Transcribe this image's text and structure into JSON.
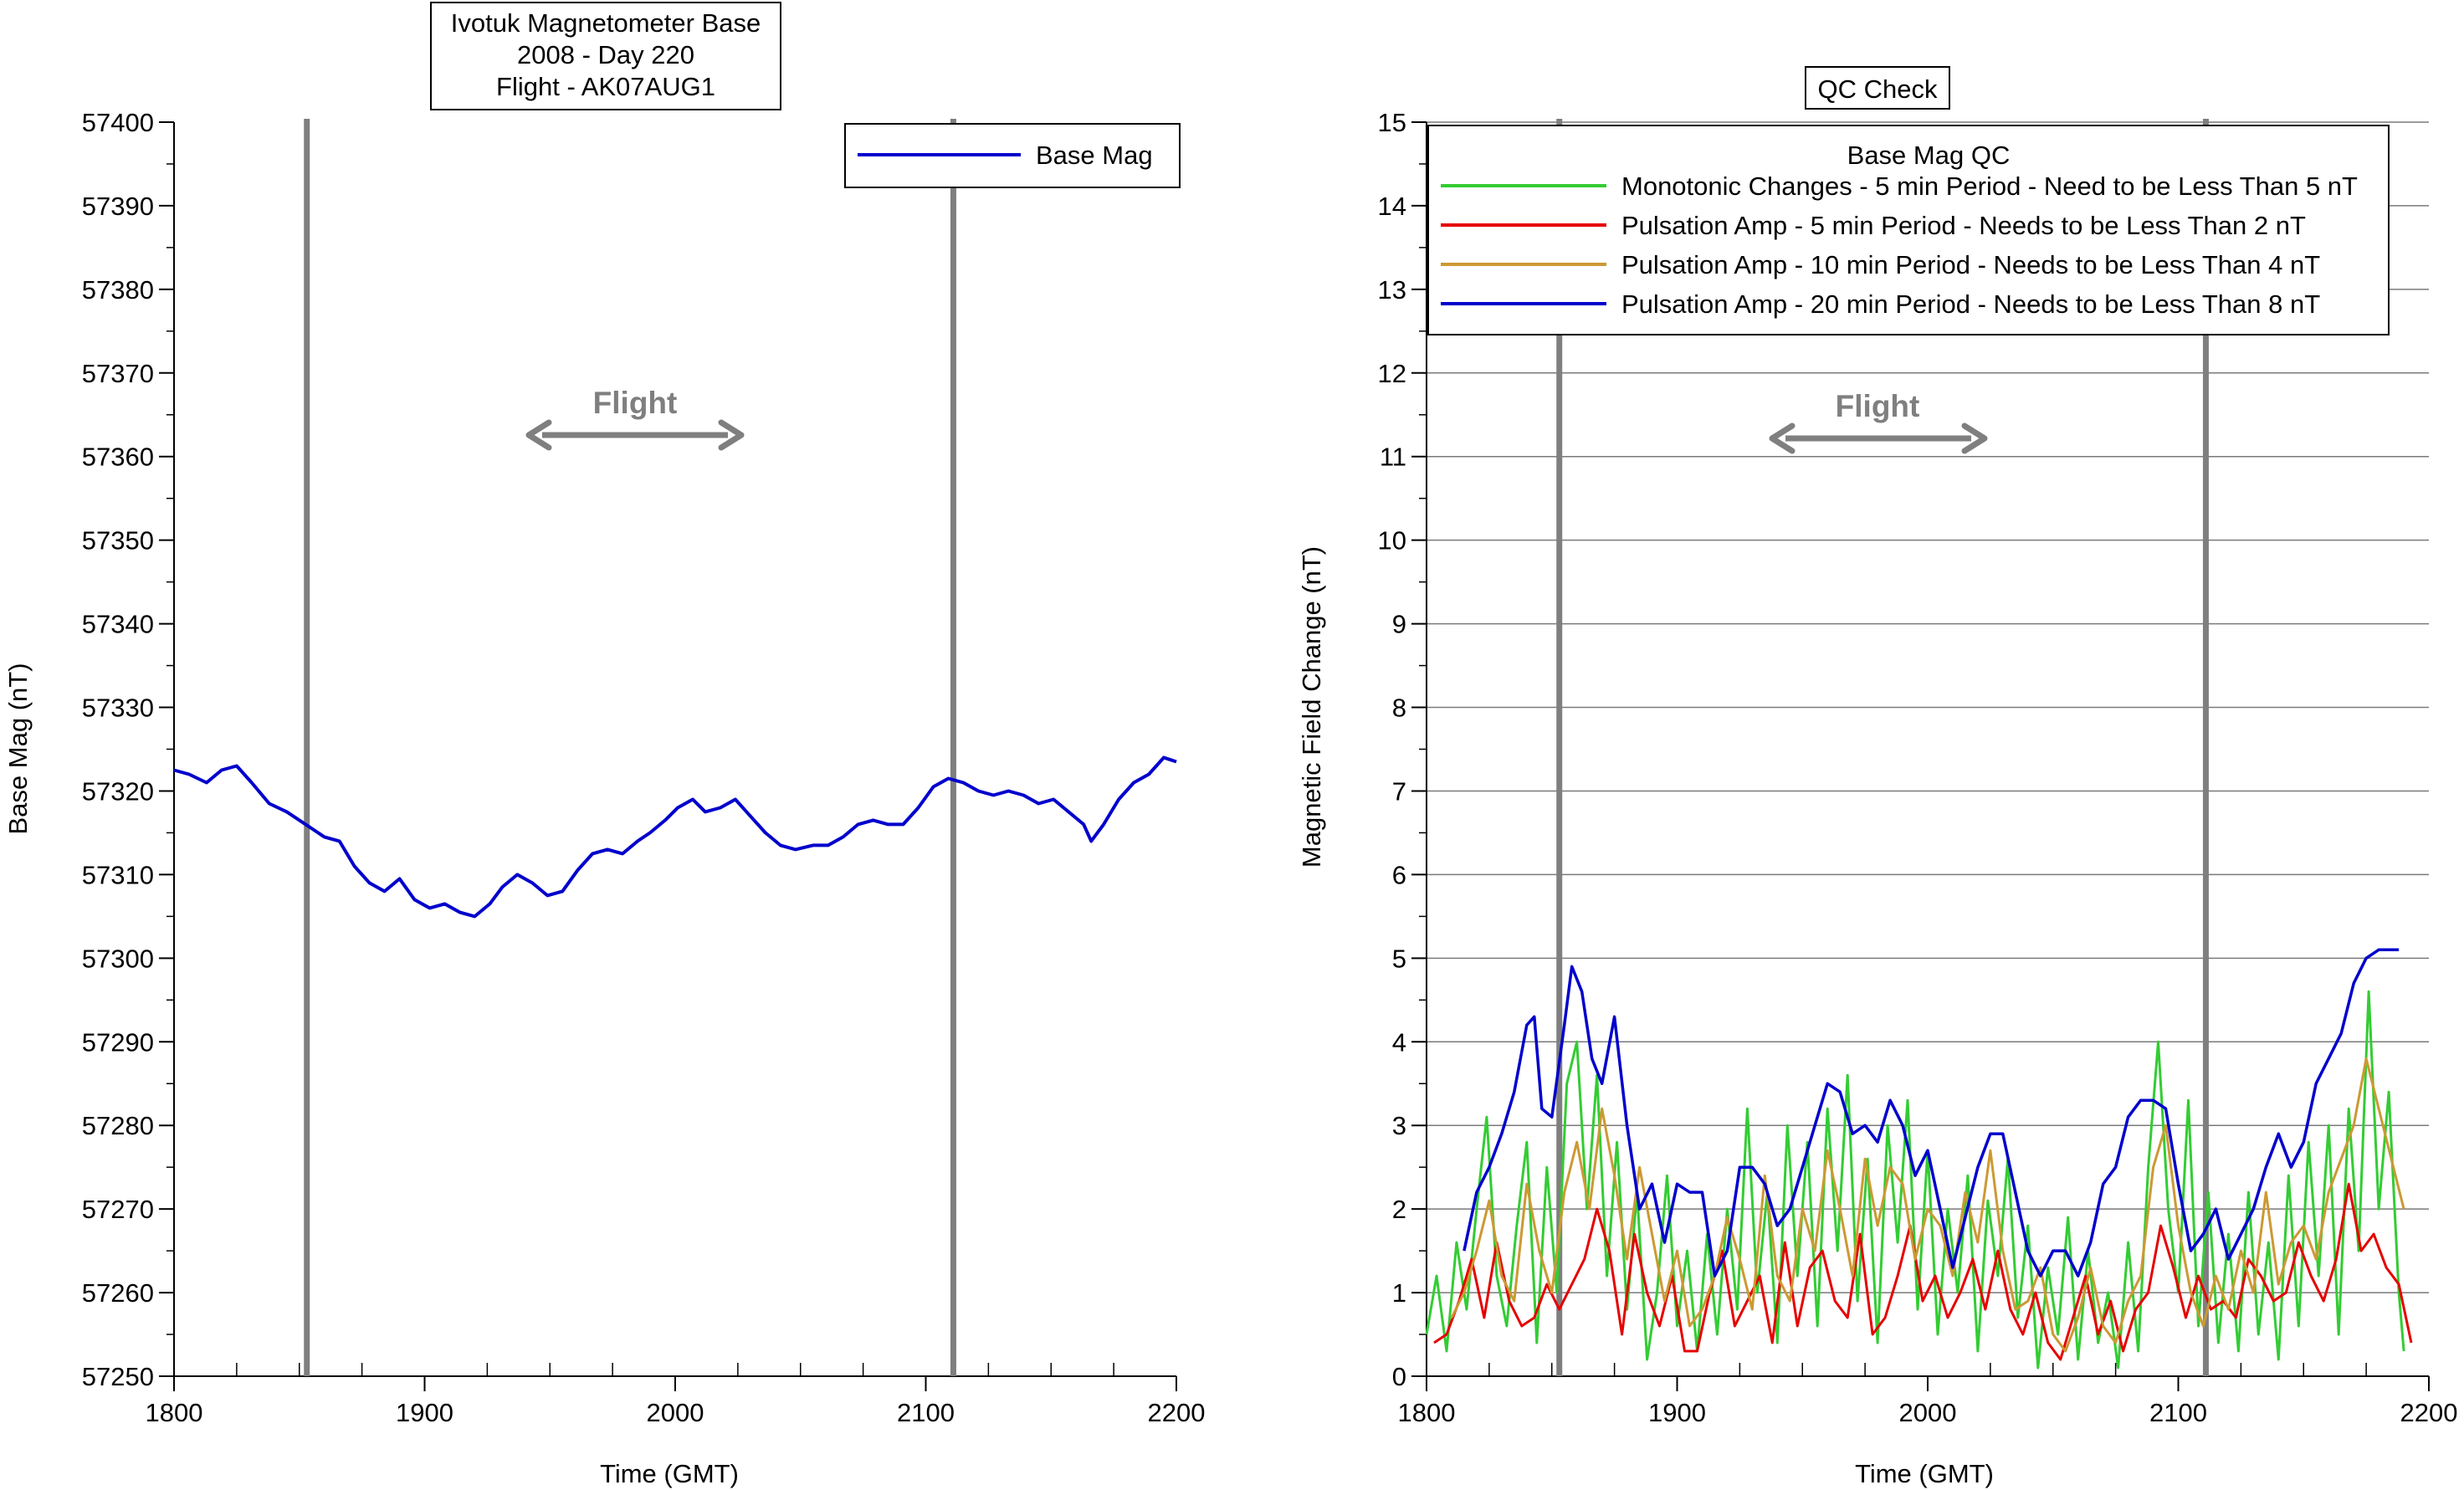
{
  "chart_data": [
    {
      "type": "line",
      "title_lines": [
        "Ivotuk Magnetometer Base",
        "2008 - Day 220",
        "Flight - AK07AUG1"
      ],
      "xlabel": "Time (GMT)",
      "ylabel": "Base Mag (nT)",
      "xlim": [
        1800,
        2200
      ],
      "ylim": [
        57250,
        57400
      ],
      "x_ticks": [
        "1800",
        "1900",
        "2000",
        "2100",
        "2200"
      ],
      "y_ticks": [
        "57250",
        "57260",
        "57270",
        "57280",
        "57290",
        "57300",
        "57310",
        "57320",
        "57330",
        "57340",
        "57350",
        "57360",
        "57370",
        "57380",
        "57390",
        "57400"
      ],
      "grid": false,
      "legend_position": "top-right",
      "flight_label": "Flight",
      "flight_markers": [
        1853,
        2111
      ],
      "series": [
        {
          "name": "Base Mag",
          "color": "#0000cc",
          "x": [
            1800,
            1806,
            1813,
            1819,
            1825,
            1831,
            1838,
            1845,
            1850,
            1855,
            1860,
            1866,
            1872,
            1878,
            1884,
            1890,
            1896,
            1902,
            1908,
            1914,
            1920,
            1926,
            1931,
            1937,
            1943,
            1949,
            1955,
            1961,
            1967,
            1973,
            1979,
            1985,
            1990,
            1996,
            2001,
            2007,
            2012,
            2018,
            2024,
            2030,
            2036,
            2042,
            2048,
            2055,
            2061,
            2067,
            2073,
            2079,
            2085,
            2091,
            2097,
            2103,
            2109,
            2115,
            2121,
            2127,
            2133,
            2139,
            2145,
            2151,
            2157,
            2163,
            2166,
            2171,
            2177,
            2183,
            2189,
            2195,
            2200
          ],
          "values": [
            57322.5,
            57322,
            57321,
            57322.5,
            57323,
            57321,
            57318.5,
            57317.5,
            57316.5,
            57315.5,
            57314.5,
            57314,
            57311,
            57309,
            57308,
            57309.5,
            57307,
            57306,
            57306.5,
            57305.5,
            57305,
            57306.5,
            57308.5,
            57310,
            57309,
            57307.5,
            57308,
            57310.5,
            57312.5,
            57313,
            57312.5,
            57314,
            57315,
            57316.5,
            57318,
            57319,
            57317.5,
            57318,
            57319,
            57317,
            57315,
            57313.5,
            57313,
            57313.5,
            57313.5,
            57314.5,
            57316,
            57316.5,
            57316,
            57316,
            57318,
            57320.5,
            57321.5,
            57321,
            57320,
            57319.5,
            57320,
            57319.5,
            57318.5,
            57319,
            57317.5,
            57316,
            57314,
            57316,
            57319,
            57321,
            57322,
            57324,
            57323.5
          ]
        }
      ]
    },
    {
      "type": "line",
      "title": "QC Check",
      "xlabel": "Time (GMT)",
      "ylabel": "Magnetic Field Change (nT)",
      "xlim": [
        1800,
        2200
      ],
      "ylim": [
        0,
        15
      ],
      "x_ticks": [
        "1800",
        "1900",
        "2000",
        "2100",
        "2200"
      ],
      "y_ticks": [
        "0",
        "1",
        "2",
        "3",
        "4",
        "5",
        "6",
        "7",
        "8",
        "9",
        "10",
        "11",
        "12",
        "13",
        "14",
        "15"
      ],
      "grid": true,
      "legend_title": "Base Mag QC",
      "legend_position": "top",
      "flight_label": "Flight",
      "flight_markers": [
        1853,
        2111
      ],
      "series": [
        {
          "name": "Monotonic Changes - 5 min Period - Need to be Less Than 5 nT",
          "color": "#33cc33",
          "x": [
            1800,
            1804,
            1808,
            1812,
            1816,
            1820,
            1824,
            1828,
            1832,
            1836,
            1840,
            1844,
            1848,
            1852,
            1856,
            1860,
            1864,
            1868,
            1872,
            1876,
            1880,
            1884,
            1888,
            1892,
            1896,
            1900,
            1904,
            1908,
            1912,
            1916,
            1920,
            1924,
            1928,
            1932,
            1936,
            1940,
            1944,
            1948,
            1952,
            1956,
            1960,
            1964,
            1968,
            1972,
            1976,
            1980,
            1984,
            1988,
            1992,
            1996,
            2000,
            2004,
            2008,
            2012,
            2016,
            2020,
            2024,
            2028,
            2032,
            2036,
            2040,
            2044,
            2048,
            2052,
            2056,
            2060,
            2064,
            2068,
            2072,
            2076,
            2080,
            2084,
            2088,
            2092,
            2096,
            2100,
            2104,
            2108,
            2112,
            2116,
            2120,
            2124,
            2128,
            2132,
            2136,
            2140,
            2144,
            2148,
            2152,
            2156,
            2160,
            2164,
            2168,
            2172,
            2176,
            2180,
            2184,
            2188,
            2190
          ],
          "values": [
            0.5,
            1.2,
            0.3,
            1.6,
            0.8,
            2.0,
            3.1,
            1.2,
            0.6,
            1.8,
            2.8,
            0.4,
            2.5,
            1.0,
            3.5,
            4.0,
            2.0,
            3.6,
            1.2,
            2.8,
            0.8,
            2.2,
            0.2,
            1.0,
            2.4,
            0.6,
            1.5,
            0.3,
            1.7,
            0.5,
            2.0,
            0.8,
            3.2,
            1.0,
            2.2,
            0.4,
            3.0,
            1.2,
            2.8,
            0.6,
            3.2,
            1.5,
            3.6,
            0.9,
            2.6,
            0.4,
            3.0,
            1.6,
            3.3,
            0.8,
            2.7,
            0.5,
            2.0,
            1.0,
            2.4,
            0.3,
            2.1,
            1.2,
            2.6,
            0.7,
            1.8,
            0.1,
            1.3,
            0.5,
            1.9,
            0.2,
            1.5,
            0.4,
            1.0,
            0.1,
            1.6,
            0.3,
            2.5,
            4.0,
            2.0,
            1.0,
            3.3,
            0.6,
            2.2,
            0.4,
            1.7,
            0.3,
            2.2,
            0.5,
            1.6,
            0.2,
            2.4,
            0.6,
            2.8,
            1.2,
            3.0,
            0.5,
            3.2,
            1.5,
            4.6,
            2.0,
            3.4,
            1.0,
            0.3
          ]
        },
        {
          "name": "Pulsation Amp - 5 min Period - Needs to be Less Than 2 nT",
          "color": "#e60000",
          "x": [
            1803,
            1808,
            1813,
            1818,
            1823,
            1828,
            1833,
            1838,
            1843,
            1848,
            1853,
            1858,
            1863,
            1868,
            1873,
            1878,
            1883,
            1888,
            1893,
            1898,
            1903,
            1908,
            1913,
            1918,
            1923,
            1928,
            1933,
            1938,
            1943,
            1948,
            1953,
            1958,
            1963,
            1968,
            1973,
            1978,
            1983,
            1988,
            1993,
            1998,
            2003,
            2008,
            2013,
            2018,
            2023,
            2028,
            2033,
            2038,
            2043,
            2048,
            2053,
            2058,
            2063,
            2068,
            2073,
            2078,
            2083,
            2088,
            2093,
            2098,
            2103,
            2108,
            2113,
            2118,
            2123,
            2128,
            2133,
            2138,
            2143,
            2148,
            2153,
            2158,
            2163,
            2168,
            2173,
            2178,
            2183,
            2188,
            2193
          ],
          "values": [
            0.4,
            0.5,
            0.9,
            1.4,
            0.7,
            1.6,
            0.9,
            0.6,
            0.7,
            1.1,
            0.8,
            1.1,
            1.4,
            2.0,
            1.5,
            0.5,
            1.7,
            1.0,
            0.6,
            1.2,
            0.3,
            0.3,
            1.0,
            1.5,
            0.6,
            0.9,
            1.2,
            0.4,
            1.6,
            0.6,
            1.3,
            1.5,
            0.9,
            0.7,
            1.7,
            0.5,
            0.7,
            1.2,
            1.8,
            0.9,
            1.2,
            0.7,
            1.0,
            1.4,
            0.8,
            1.5,
            0.8,
            0.5,
            1.0,
            0.4,
            0.2,
            0.7,
            1.2,
            0.5,
            0.9,
            0.3,
            0.8,
            1.0,
            1.8,
            1.3,
            0.7,
            1.2,
            0.8,
            0.9,
            0.7,
            1.4,
            1.2,
            0.9,
            1.0,
            1.6,
            1.2,
            0.9,
            1.4,
            2.3,
            1.5,
            1.7,
            1.3,
            1.1,
            0.4
          ]
        },
        {
          "name": "Pulsation Amp - 10 min Period - Needs to be Less Than 4 nT",
          "color": "#cc9933",
          "x": [
            1810,
            1815,
            1820,
            1825,
            1830,
            1835,
            1840,
            1845,
            1850,
            1855,
            1860,
            1865,
            1870,
            1875,
            1880,
            1885,
            1890,
            1895,
            1900,
            1905,
            1910,
            1915,
            1920,
            1925,
            1930,
            1935,
            1940,
            1945,
            1950,
            1955,
            1960,
            1965,
            1970,
            1975,
            1980,
            1985,
            1990,
            1995,
            2000,
            2005,
            2010,
            2015,
            2020,
            2025,
            2030,
            2035,
            2040,
            2045,
            2050,
            2055,
            2060,
            2065,
            2070,
            2075,
            2080,
            2085,
            2090,
            2095,
            2100,
            2105,
            2110,
            2115,
            2120,
            2125,
            2130,
            2135,
            2140,
            2145,
            2150,
            2155,
            2160,
            2165,
            2170,
            2175,
            2180,
            2185,
            2190
          ],
          "values": [
            0.7,
            1.0,
            1.5,
            2.1,
            1.2,
            0.9,
            2.3,
            1.5,
            1.0,
            2.2,
            2.8,
            2.0,
            3.2,
            2.4,
            1.4,
            2.5,
            1.7,
            0.9,
            1.5,
            0.6,
            0.8,
            1.2,
            1.9,
            1.4,
            0.8,
            2.4,
            1.2,
            0.9,
            2.0,
            1.5,
            2.7,
            2.0,
            1.2,
            2.6,
            1.8,
            2.5,
            2.3,
            1.4,
            2.0,
            1.8,
            1.2,
            2.2,
            1.6,
            2.7,
            1.5,
            0.8,
            0.9,
            1.3,
            0.5,
            0.3,
            0.7,
            1.3,
            0.6,
            0.4,
            0.9,
            1.2,
            2.5,
            3.0,
            1.8,
            1.0,
            0.6,
            1.2,
            0.8,
            1.5,
            1.0,
            2.2,
            1.1,
            1.6,
            1.8,
            1.4,
            2.2,
            2.6,
            3.0,
            3.8,
            3.2,
            2.6,
            2.0
          ]
        },
        {
          "name": "Pulsation Amp - 20 min Period - Needs to be Less Than 8 nT",
          "color": "#0000cc",
          "x": [
            1815,
            1820,
            1825,
            1830,
            1835,
            1840,
            1843,
            1846,
            1850,
            1855,
            1858,
            1862,
            1866,
            1870,
            1875,
            1880,
            1885,
            1890,
            1895,
            1900,
            1905,
            1910,
            1915,
            1920,
            1925,
            1930,
            1935,
            1940,
            1945,
            1950,
            1955,
            1960,
            1965,
            1970,
            1975,
            1980,
            1985,
            1990,
            1995,
            2000,
            2005,
            2010,
            2015,
            2020,
            2025,
            2030,
            2035,
            2040,
            2045,
            2050,
            2055,
            2060,
            2065,
            2070,
            2075,
            2080,
            2085,
            2090,
            2095,
            2100,
            2105,
            2110,
            2115,
            2120,
            2125,
            2130,
            2135,
            2140,
            2145,
            2150,
            2155,
            2160,
            2165,
            2170,
            2175,
            2180,
            2185,
            2188
          ],
          "values": [
            1.5,
            2.2,
            2.5,
            2.9,
            3.4,
            4.2,
            4.3,
            3.2,
            3.1,
            4.2,
            4.9,
            4.6,
            3.8,
            3.5,
            4.3,
            3.0,
            2.0,
            2.3,
            1.6,
            2.3,
            2.2,
            2.2,
            1.2,
            1.5,
            2.5,
            2.5,
            2.3,
            1.8,
            2.0,
            2.5,
            3.0,
            3.5,
            3.4,
            2.9,
            3.0,
            2.8,
            3.3,
            3.0,
            2.4,
            2.7,
            2.0,
            1.3,
            1.9,
            2.5,
            2.9,
            2.9,
            2.2,
            1.5,
            1.2,
            1.5,
            1.5,
            1.2,
            1.6,
            2.3,
            2.5,
            3.1,
            3.3,
            3.3,
            3.2,
            2.3,
            1.5,
            1.7,
            2.0,
            1.4,
            1.7,
            2.0,
            2.5,
            2.9,
            2.5,
            2.8,
            3.5,
            3.8,
            4.1,
            4.7,
            5.0,
            5.1,
            5.1,
            5.1
          ]
        }
      ]
    }
  ]
}
